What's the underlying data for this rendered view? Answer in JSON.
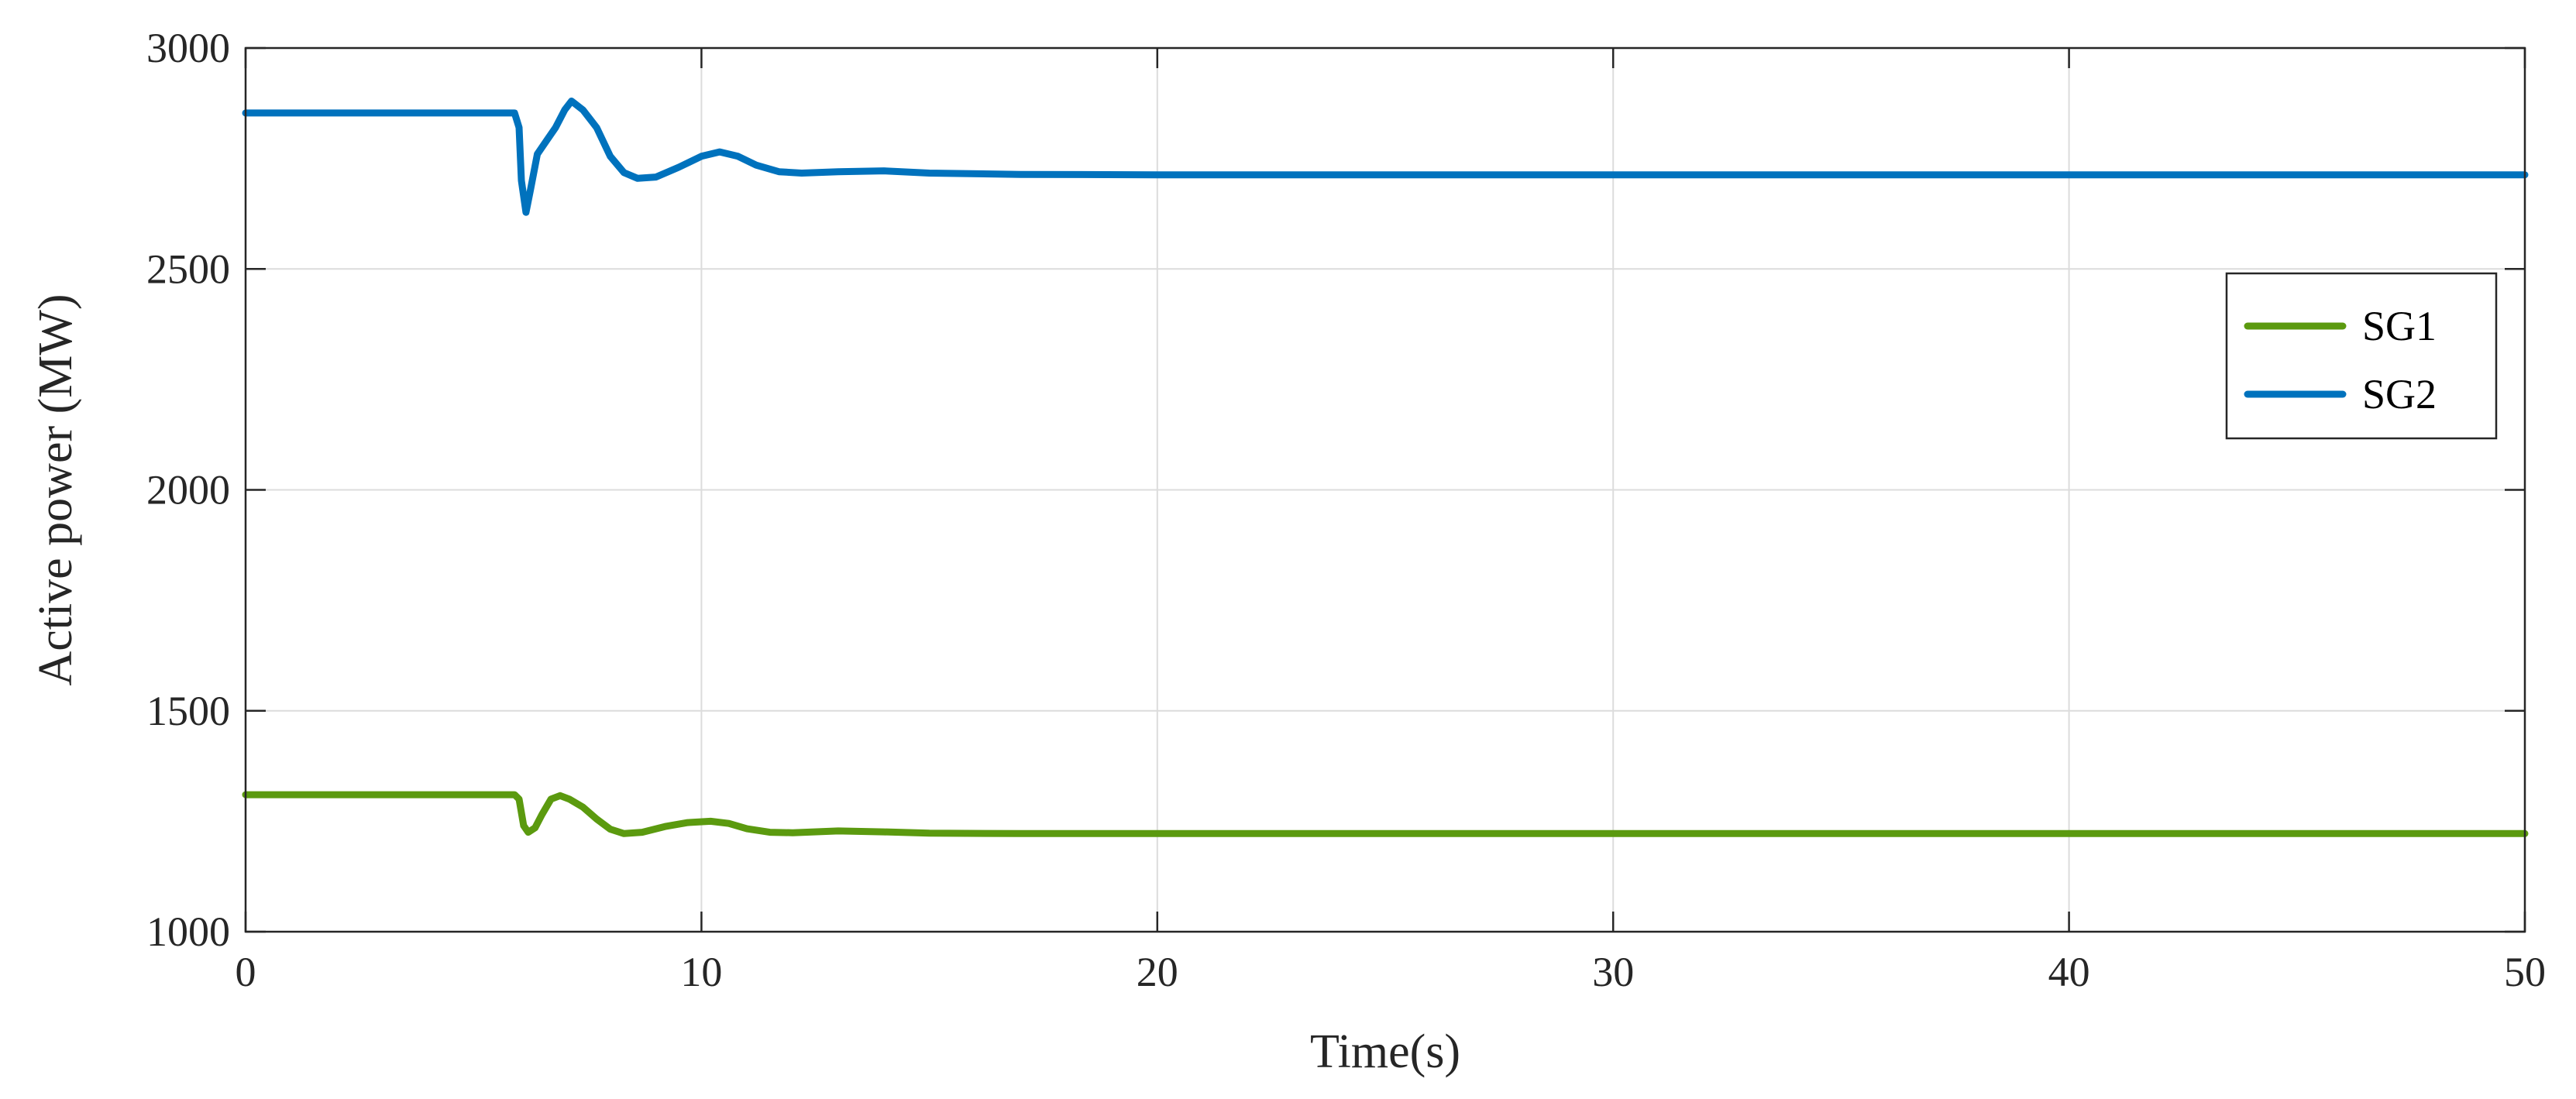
{
  "chart_data": {
    "type": "line",
    "xlabel": "Time(s)",
    "ylabel": "Active power (MW)",
    "xlim": [
      0,
      50
    ],
    "ylim": [
      1000,
      3000
    ],
    "xticks": [
      0,
      10,
      20,
      30,
      40,
      50
    ],
    "yticks": [
      1000,
      1500,
      2000,
      2500,
      3000
    ],
    "grid": true,
    "legend_position": "top-right",
    "series": [
      {
        "name": "SG1",
        "color": "#5b9a0f",
        "x": [
          0,
          5.9,
          6.0,
          6.1,
          6.2,
          6.35,
          6.5,
          6.7,
          6.9,
          7.1,
          7.4,
          7.7,
          8.0,
          8.3,
          8.7,
          9.2,
          9.7,
          10.2,
          10.6,
          11.0,
          11.5,
          12.0,
          13.0,
          14.0,
          15.0,
          17.0,
          20.0,
          30.0,
          40.0,
          50.0
        ],
        "values": [
          1310,
          1310,
          1300,
          1240,
          1225,
          1235,
          1265,
          1300,
          1308,
          1300,
          1282,
          1255,
          1232,
          1222,
          1225,
          1238,
          1247,
          1250,
          1245,
          1233,
          1225,
          1224,
          1228,
          1226,
          1223,
          1222,
          1222,
          1222,
          1222,
          1222
        ]
      },
      {
        "name": "SG2",
        "color": "#0072bd",
        "x": [
          0,
          5.9,
          6.0,
          6.05,
          6.15,
          6.25,
          6.4,
          6.6,
          6.8,
          7.0,
          7.15,
          7.4,
          7.7,
          8.0,
          8.3,
          8.6,
          9.0,
          9.5,
          10.0,
          10.4,
          10.8,
          11.2,
          11.7,
          12.2,
          13.0,
          14.0,
          15.0,
          17.0,
          20.0,
          30.0,
          40.0,
          50.0
        ],
        "values": [
          2853,
          2853,
          2820,
          2700,
          2628,
          2680,
          2760,
          2790,
          2820,
          2860,
          2880,
          2860,
          2820,
          2755,
          2718,
          2705,
          2708,
          2730,
          2755,
          2765,
          2755,
          2735,
          2720,
          2717,
          2720,
          2722,
          2717,
          2714,
          2713,
          2713,
          2713,
          2713
        ]
      }
    ]
  }
}
